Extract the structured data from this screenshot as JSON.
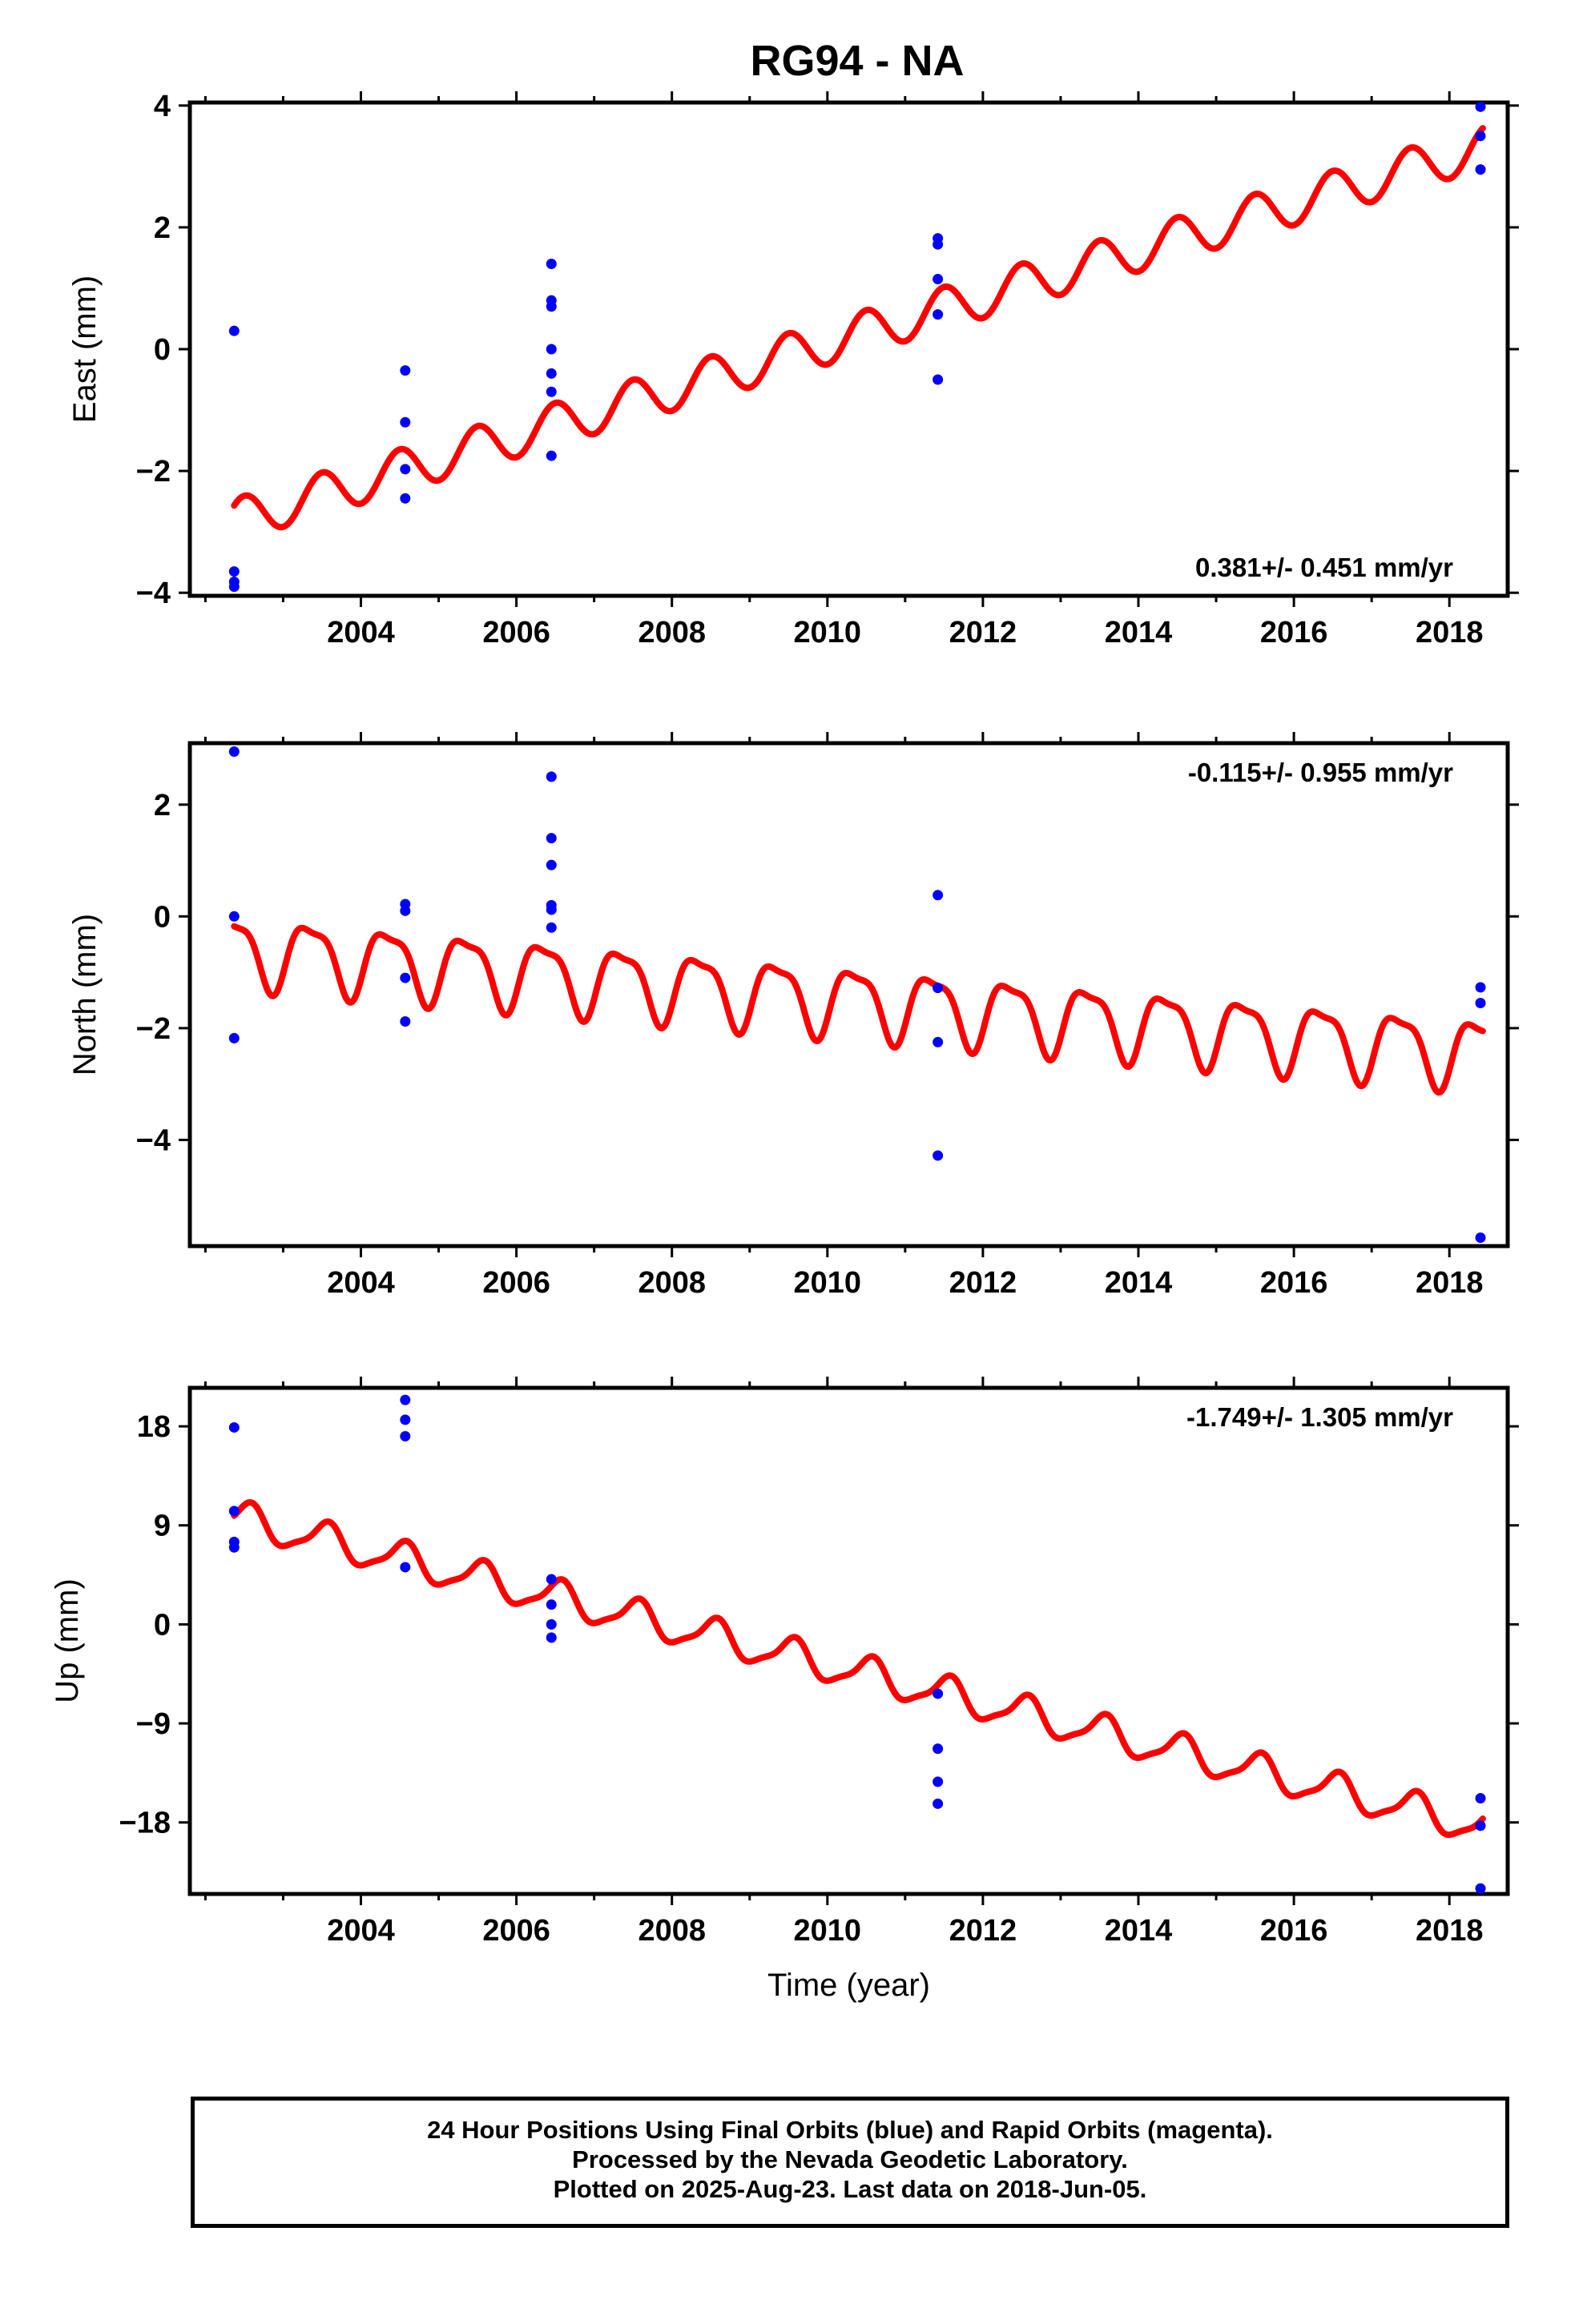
{
  "title": "RG94 - NA",
  "xlabel": "Time (year)",
  "footer": {
    "line1": "24 Hour Positions Using Final Orbits (blue) and Rapid Orbits (magenta).",
    "line2": "Processed by the Nevada Geodetic Laboratory.",
    "line3": "Plotted on 2025-Aug-23. Last data on 2018-Jun-05."
  },
  "colors": {
    "points": "#0000ff",
    "model": "#ff0000",
    "frame": "#000000"
  },
  "chart_data": [
    {
      "type": "scatter",
      "panel": "east",
      "ylabel": "East (mm)",
      "rate_label": "0.381+/- 0.451 mm/yr",
      "rate_position": "bottom-right",
      "xlim": [
        2001.8,
        2018.75
      ],
      "ylim": [
        -4.05,
        4.05
      ],
      "x_ticks": [
        2004,
        2006,
        2008,
        2010,
        2012,
        2014,
        2016,
        2018
      ],
      "y_ticks": [
        -4,
        -2,
        0,
        2,
        4
      ],
      "y_tick_labels": [
        "−4",
        "−2",
        "0",
        "2",
        "4"
      ],
      "points": [
        {
          "x": 2002.37,
          "y": 0.3
        },
        {
          "x": 2002.37,
          "y": -3.65
        },
        {
          "x": 2002.37,
          "y": -3.82
        },
        {
          "x": 2002.37,
          "y": -3.9
        },
        {
          "x": 2004.57,
          "y": -0.35
        },
        {
          "x": 2004.57,
          "y": -1.2
        },
        {
          "x": 2004.57,
          "y": -1.97
        },
        {
          "x": 2004.57,
          "y": -2.45
        },
        {
          "x": 2006.45,
          "y": 1.4
        },
        {
          "x": 2006.45,
          "y": 0.8
        },
        {
          "x": 2006.45,
          "y": 0.7
        },
        {
          "x": 2006.45,
          "y": 0.0
        },
        {
          "x": 2006.45,
          "y": -0.4
        },
        {
          "x": 2006.45,
          "y": -0.7
        },
        {
          "x": 2006.45,
          "y": -1.75
        },
        {
          "x": 2011.42,
          "y": 1.82
        },
        {
          "x": 2011.42,
          "y": 1.72
        },
        {
          "x": 2011.42,
          "y": 1.15
        },
        {
          "x": 2011.42,
          "y": 0.57
        },
        {
          "x": 2011.42,
          "y": -0.5
        },
        {
          "x": 2018.4,
          "y": 3.98
        },
        {
          "x": 2018.4,
          "y": 3.5
        },
        {
          "x": 2018.4,
          "y": 2.95
        }
      ],
      "model": {
        "x_start": 2002.37,
        "x_end": 2018.43,
        "offset_at_2010": 0.1,
        "rate": 0.381,
        "annual_amp": 0.35,
        "annual_phase": 0.25,
        "semiannual_amp": 0.0,
        "semiannual_phase": 0.0
      }
    },
    {
      "type": "scatter",
      "panel": "north",
      "ylabel": "North (mm)",
      "rate_label": "-0.115+/- 0.955 mm/yr",
      "rate_position": "top-right",
      "xlim": [
        2001.8,
        2018.75
      ],
      "ylim": [
        -5.9,
        3.1
      ],
      "x_ticks": [
        2004,
        2006,
        2008,
        2010,
        2012,
        2014,
        2016,
        2018
      ],
      "y_ticks": [
        -4,
        -2,
        0,
        2
      ],
      "y_tick_labels": [
        "−4",
        "−2",
        "0",
        "2"
      ],
      "points": [
        {
          "x": 2002.37,
          "y": 2.95
        },
        {
          "x": 2002.37,
          "y": 0.0
        },
        {
          "x": 2002.37,
          "y": -2.18
        },
        {
          "x": 2004.57,
          "y": 0.22
        },
        {
          "x": 2004.57,
          "y": 0.1
        },
        {
          "x": 2004.57,
          "y": -1.1
        },
        {
          "x": 2004.57,
          "y": -1.88
        },
        {
          "x": 2006.45,
          "y": 2.5
        },
        {
          "x": 2006.45,
          "y": 1.4
        },
        {
          "x": 2006.45,
          "y": 0.92
        },
        {
          "x": 2006.45,
          "y": 0.2
        },
        {
          "x": 2006.45,
          "y": 0.12
        },
        {
          "x": 2006.45,
          "y": -0.2
        },
        {
          "x": 2011.42,
          "y": 0.38
        },
        {
          "x": 2011.42,
          "y": -1.28
        },
        {
          "x": 2011.42,
          "y": -2.25
        },
        {
          "x": 2011.42,
          "y": -4.28
        },
        {
          "x": 2018.4,
          "y": -1.27
        },
        {
          "x": 2018.4,
          "y": -1.55
        },
        {
          "x": 2018.4,
          "y": -5.75
        }
      ],
      "model": {
        "x_start": 2002.37,
        "x_end": 2018.43,
        "offset_at_2010": -1.47,
        "rate": -0.115,
        "annual_amp": 0.6,
        "annual_phase": 0.1,
        "semiannual_amp": 0.18,
        "semiannual_phase": 0.0
      }
    },
    {
      "type": "scatter",
      "panel": "up",
      "ylabel": "Up (mm)",
      "xlabel": "Time (year)",
      "rate_label": "-1.749+/- 1.305 mm/yr",
      "rate_position": "top-right",
      "xlim": [
        2001.8,
        2018.75
      ],
      "ylim": [
        -24.5,
        21.5
      ],
      "x_ticks": [
        2004,
        2006,
        2008,
        2010,
        2012,
        2014,
        2016,
        2018
      ],
      "y_ticks": [
        -18,
        -9,
        0,
        9,
        18
      ],
      "y_tick_labels": [
        "−18",
        "−9",
        "0",
        "9",
        "18"
      ],
      "points": [
        {
          "x": 2002.37,
          "y": 17.9
        },
        {
          "x": 2002.37,
          "y": 10.3
        },
        {
          "x": 2002.37,
          "y": 7.5
        },
        {
          "x": 2002.37,
          "y": 7.0
        },
        {
          "x": 2004.57,
          "y": 20.4
        },
        {
          "x": 2004.57,
          "y": 18.6
        },
        {
          "x": 2004.57,
          "y": 17.1
        },
        {
          "x": 2004.57,
          "y": 5.2
        },
        {
          "x": 2006.45,
          "y": 4.1
        },
        {
          "x": 2006.45,
          "y": 1.8
        },
        {
          "x": 2006.45,
          "y": 0.0
        },
        {
          "x": 2006.45,
          "y": -1.2
        },
        {
          "x": 2011.42,
          "y": -6.3
        },
        {
          "x": 2011.42,
          "y": -11.3
        },
        {
          "x": 2011.42,
          "y": -14.3
        },
        {
          "x": 2011.42,
          "y": -16.3
        },
        {
          "x": 2018.4,
          "y": -15.8
        },
        {
          "x": 2018.4,
          "y": -18.3
        },
        {
          "x": 2018.4,
          "y": -24.0
        }
      ],
      "model": {
        "x_start": 2002.37,
        "x_end": 2018.43,
        "offset_at_2010": -3.7,
        "rate": -1.749,
        "annual_amp": 1.5,
        "annual_phase": 0.3,
        "semiannual_amp": 0.4,
        "semiannual_phase": 0.0
      }
    }
  ]
}
